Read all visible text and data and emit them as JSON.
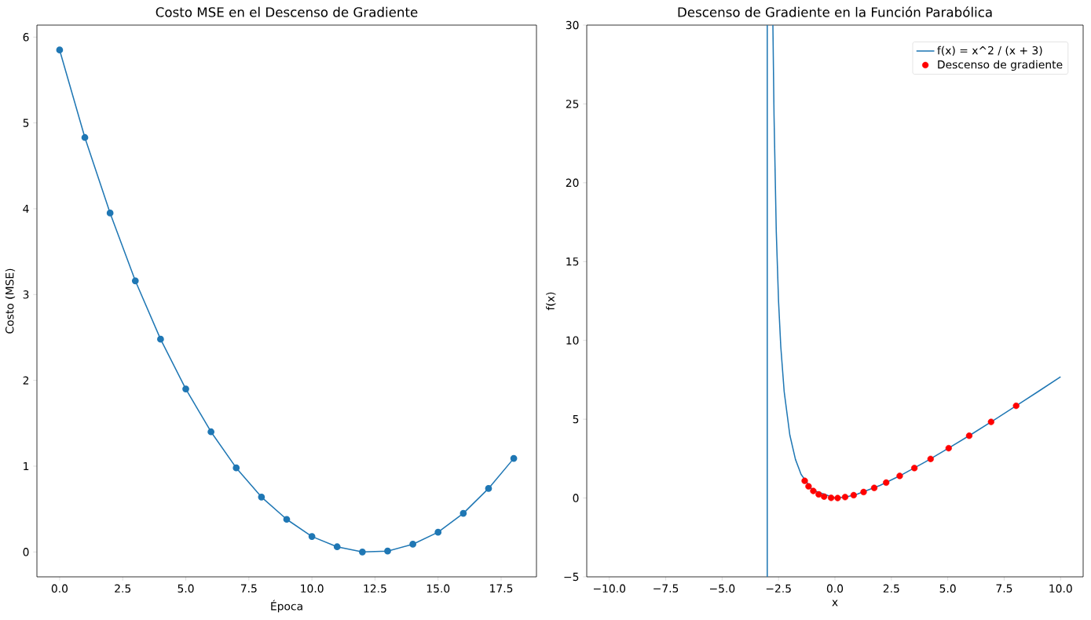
{
  "chart_data": [
    {
      "type": "line",
      "title": "Costo MSE en el Descenso de Gradiente",
      "xlabel": "Época",
      "ylabel": "Costo (MSE)",
      "x": [
        0,
        1,
        2,
        3,
        4,
        5,
        6,
        7,
        8,
        9,
        10,
        11,
        12,
        13,
        14,
        15,
        16,
        17,
        18
      ],
      "values": [
        5.85,
        4.83,
        3.95,
        3.16,
        2.48,
        1.9,
        1.4,
        0.98,
        0.64,
        0.38,
        0.18,
        0.06,
        0.0,
        0.01,
        0.09,
        0.23,
        0.45,
        0.74,
        1.09
      ],
      "color": "#1f77b4",
      "marker": "circle",
      "xlim": [
        -0.9,
        18.9
      ],
      "ylim": [
        -0.29,
        6.14
      ],
      "xticks": [
        {
          "value": 0,
          "label": "0.0"
        },
        {
          "value": 2.5,
          "label": "2.5"
        },
        {
          "value": 5,
          "label": "5.0"
        },
        {
          "value": 7.5,
          "label": "7.5"
        },
        {
          "value": 10,
          "label": "10.0"
        },
        {
          "value": 12.5,
          "label": "12.5"
        },
        {
          "value": 15,
          "label": "15.0"
        },
        {
          "value": 17.5,
          "label": "17.5"
        }
      ],
      "yticks": [
        0,
        1,
        2,
        3,
        4,
        5,
        6
      ]
    },
    {
      "type": "line",
      "title": "Descenso de Gradiente en la Función Parabólica",
      "xlabel": "x",
      "ylabel": "f(x)",
      "legend": "top right",
      "series": [
        {
          "name": "f(x) = x^2 / (x + 3)",
          "type": "line",
          "color": "#1f77b4",
          "x": [
            -3.0,
            -3.0,
            -2.9,
            -2.75,
            -2.7,
            -2.6,
            -2.5,
            -2.4,
            -2.25,
            -2.0,
            -1.75,
            -1.5,
            -1.0,
            0,
            0.5,
            1,
            2,
            3,
            4,
            5,
            6,
            7,
            8,
            9,
            10
          ],
          "values": [
            -5,
            30,
            null,
            30,
            24.3,
            16.9,
            12.5,
            9.6,
            6.75,
            4.0,
            2.45,
            1.5,
            0.5,
            0,
            0.07,
            0.25,
            0.8,
            1.5,
            2.29,
            3.13,
            4.0,
            4.9,
            5.82,
            6.75,
            7.69
          ]
        },
        {
          "name": "Descenso de gradiente",
          "type": "scatter",
          "color": "#ff0000",
          "x": [
            8.03,
            6.92,
            5.95,
            5.04,
            4.24,
            3.52,
            2.87,
            2.27,
            1.74,
            1.27,
            0.83,
            0.45,
            0.12,
            -0.17,
            -0.48,
            -0.72,
            -0.96,
            -1.17,
            -1.34
          ],
          "values": [
            5.85,
            4.83,
            3.95,
            3.16,
            2.48,
            1.9,
            1.4,
            0.98,
            0.64,
            0.38,
            0.18,
            0.06,
            0.0,
            0.01,
            0.09,
            0.23,
            0.45,
            0.74,
            1.09
          ]
        }
      ],
      "xlim": [
        -11,
        11
      ],
      "ylim": [
        -5,
        30
      ],
      "xticks": [
        {
          "value": -10,
          "label": "−10.0"
        },
        {
          "value": -7.5,
          "label": "−7.5"
        },
        {
          "value": -5,
          "label": "−5.0"
        },
        {
          "value": -2.5,
          "label": "−2.5"
        },
        {
          "value": 0,
          "label": "0.0"
        },
        {
          "value": 2.5,
          "label": "2.5"
        },
        {
          "value": 5,
          "label": "5.0"
        },
        {
          "value": 7.5,
          "label": "7.5"
        },
        {
          "value": 10,
          "label": "10.0"
        }
      ],
      "yticks": [
        {
          "value": -5,
          "label": "−5"
        },
        0,
        5,
        10,
        15,
        20,
        25,
        30
      ]
    }
  ]
}
